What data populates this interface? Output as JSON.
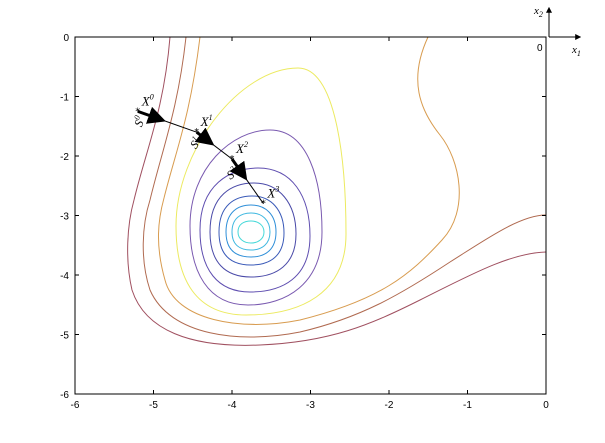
{
  "chart_data": {
    "type": "line",
    "title": "",
    "xlim": [
      -6,
      0
    ],
    "ylim": [
      -6,
      0
    ],
    "x_ticks": [
      "-6",
      "-5",
      "-4",
      "-3",
      "-2",
      "-1",
      "0"
    ],
    "y_ticks": [
      "0",
      "-1",
      "-2",
      "-3",
      "-4",
      "-5",
      "-6"
    ],
    "grid": false,
    "inset_axes": {
      "x_label_base": "x",
      "x_label_sub": "1",
      "y_label_base": "x",
      "y_label_sub": "2",
      "origin_label": "0"
    },
    "contour_colors": [
      "#44d8d8",
      "#3fb8e0",
      "#2f8fd8",
      "#3a5ab8",
      "#4a4aa8",
      "#5f4eb0",
      "#7a5ab0",
      "#ecea60",
      "#d89c50",
      "#b06a50",
      "#a05060"
    ],
    "path": {
      "points": [
        {
          "label_base": "X",
          "label_sup": "0",
          "x": -5.2,
          "y": -1.25
        },
        {
          "label_base": "X",
          "label_sup": "1",
          "x": -4.45,
          "y": -1.6
        },
        {
          "label_base": "X",
          "label_sup": "2",
          "x": -4.0,
          "y": -2.05
        },
        {
          "label_base": "X",
          "label_sup": "3",
          "x": -3.6,
          "y": -2.8
        }
      ],
      "directions": [
        {
          "label_base": "S",
          "label_sup": "0"
        },
        {
          "label_base": "S",
          "label_sup": "1"
        },
        {
          "label_base": "S",
          "label_sup": "2"
        }
      ]
    }
  }
}
